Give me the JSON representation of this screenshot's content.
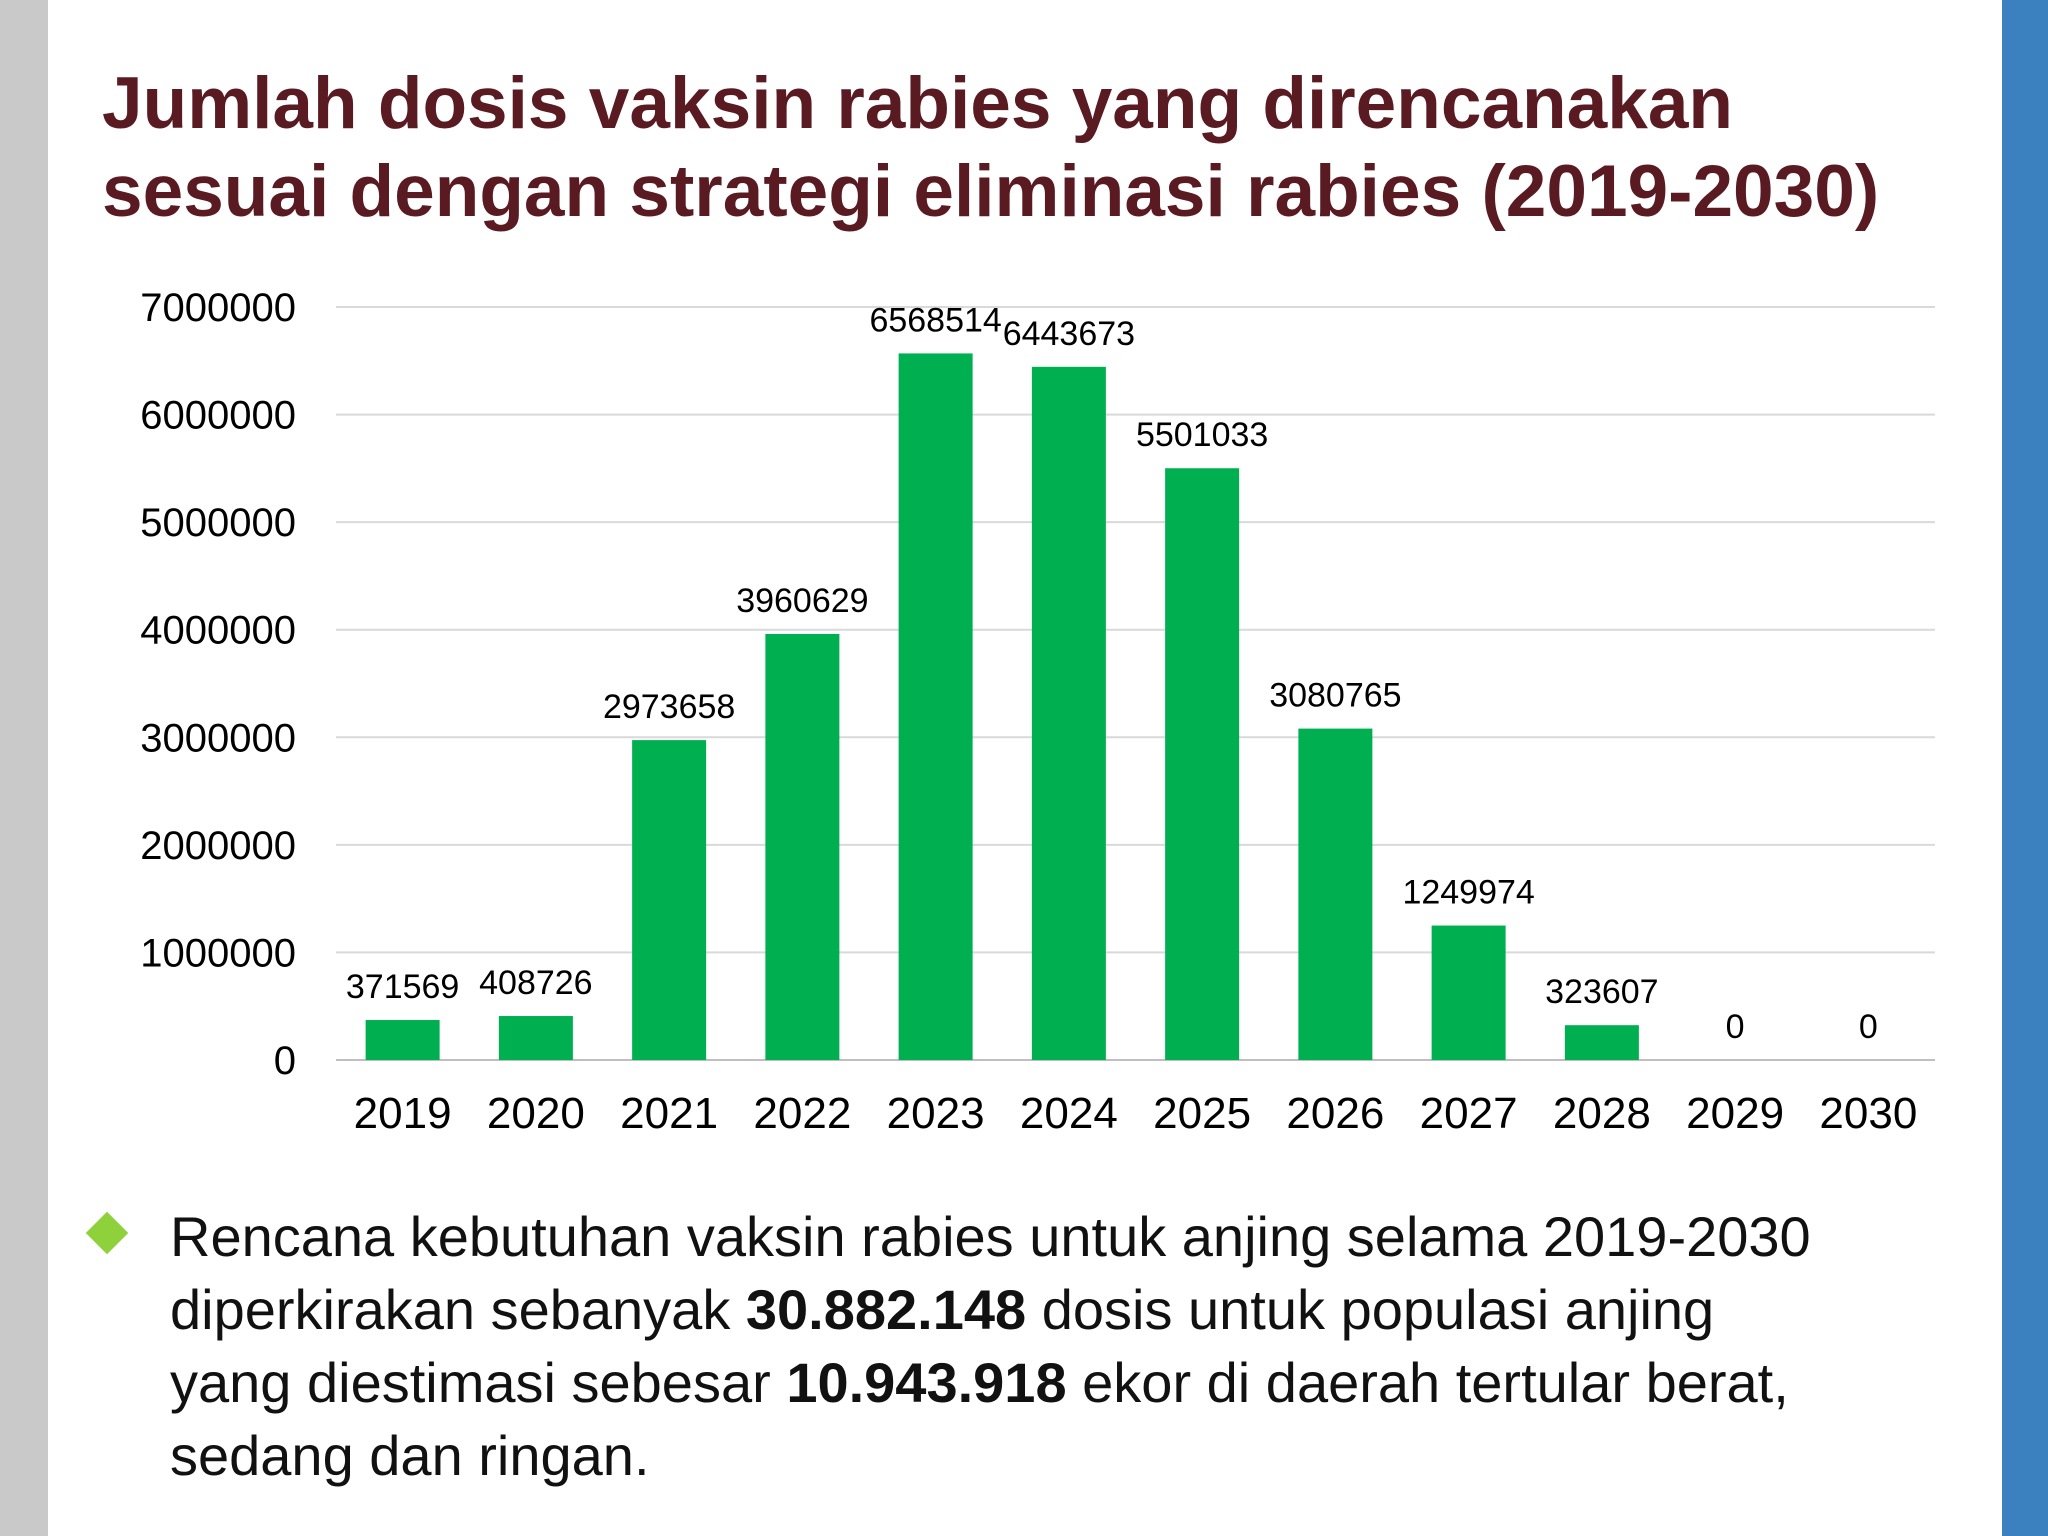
{
  "slide": {
    "title_line1": "Jumlah dosis vaksin rabies yang direncanakan",
    "title_line2": "sesuai dengan strategi eliminasi rabies (2019-2030)",
    "accent_left": "#c9c9c9",
    "accent_right": "#3b80bf",
    "bullet": {
      "icon": "diamond-icon",
      "icon_color": "#8fd13b",
      "line1": "Rencana kebutuhan vaksin rabies untuk anjing selama 2019-2030",
      "line2_a": "diperkirakan sebanyak ",
      "line2_b": "30.882.148",
      "line2_c": " dosis untuk populasi anjing",
      "line3_a": "yang diestimasi sebesar ",
      "line3_b": "10.943.918",
      "line3_c": " ekor di daerah tertular berat,",
      "line4": "sedang dan ringan."
    }
  },
  "chart_data": {
    "type": "bar",
    "title": "",
    "xlabel": "",
    "ylabel": "",
    "categories": [
      "2019",
      "2020",
      "2021",
      "2022",
      "2023",
      "2024",
      "2025",
      "2026",
      "2027",
      "2028",
      "2029",
      "2030"
    ],
    "values": [
      371569,
      408726,
      2973658,
      3960629,
      6568514,
      6443673,
      5501033,
      3080765,
      1249974,
      323607,
      0,
      0
    ],
    "data_labels": [
      "371569",
      "408726",
      "2973658",
      "3960629",
      "6568514",
      "6443673",
      "5501033",
      "3080765",
      "1249974",
      "323607",
      "0",
      "0"
    ],
    "yticks": [
      0,
      1000000,
      2000000,
      3000000,
      4000000,
      5000000,
      6000000,
      7000000
    ],
    "ytick_labels": [
      "0",
      "1000000",
      "2000000",
      "3000000",
      "4000000",
      "5000000",
      "6000000",
      "7000000"
    ],
    "ylim": [
      0,
      7000000
    ],
    "grid": true,
    "legend": "none",
    "bar_color": "#00b050",
    "grid_color": "#d9d9d9"
  }
}
